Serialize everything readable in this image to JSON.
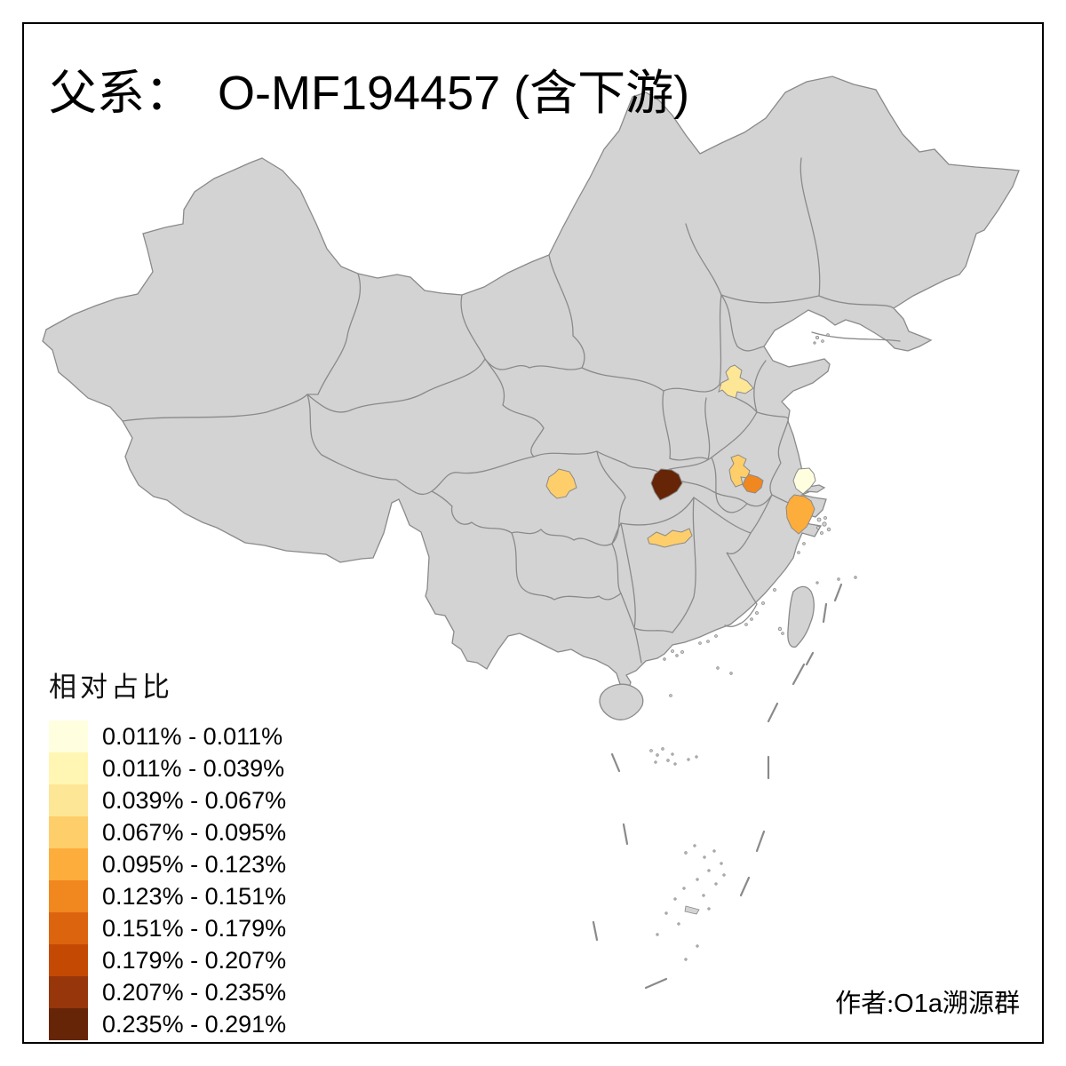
{
  "title": {
    "prefix": "父系：",
    "code": "O-MF194457 (含下游)"
  },
  "legend": {
    "title": "相对占比",
    "classes": [
      {
        "label": "0.011% - 0.011%",
        "color": "#FFFFE0"
      },
      {
        "label": "0.011% - 0.039%",
        "color": "#FFF6B3"
      },
      {
        "label": "0.039% - 0.067%",
        "color": "#FEE697"
      },
      {
        "label": "0.067% - 0.095%",
        "color": "#FDCE6A"
      },
      {
        "label": "0.095% - 0.123%",
        "color": "#FDAD3C"
      },
      {
        "label": "0.123% - 0.151%",
        "color": "#F1871F"
      },
      {
        "label": "0.151% - 0.179%",
        "color": "#DD640E"
      },
      {
        "label": "0.179% - 0.207%",
        "color": "#C44A03"
      },
      {
        "label": "0.207% - 0.235%",
        "color": "#97350B"
      },
      {
        "label": "0.235% - 0.291%",
        "color": "#652506"
      }
    ]
  },
  "credit": {
    "prefix": "作者:",
    "latin": "O1a",
    "suffix": "溯源群"
  },
  "map": {
    "background": "#FFFFFF",
    "land_color": "#D3D3D3",
    "border_color": "#8A8A8A",
    "frame_color": "#000000",
    "regions": [
      {
        "id": "west-shandong",
        "class_index": 2
      },
      {
        "id": "chengdu-area",
        "class_index": 3
      },
      {
        "id": "central-hubei",
        "class_index": 9
      },
      {
        "id": "north-anhui",
        "class_index": 3
      },
      {
        "id": "central-anhui",
        "class_index": 5
      },
      {
        "id": "nantong-area",
        "class_index": 0
      },
      {
        "id": "south-yangtze-delta",
        "class_index": 4
      },
      {
        "id": "north-hunan",
        "class_index": 3
      }
    ]
  },
  "chart_data": {
    "type": "choropleth-map",
    "title": "父系： O-MF194457 (含下游)",
    "legend_title": "相对占比",
    "bins": [
      "0.011% - 0.011%",
      "0.011% - 0.039%",
      "0.039% - 0.067%",
      "0.067% - 0.095%",
      "0.095% - 0.123%",
      "0.123% - 0.151%",
      "0.151% - 0.179%",
      "0.179% - 0.207%",
      "0.207% - 0.235%",
      "0.235% - 0.291%"
    ],
    "highlighted_regions": [
      {
        "location": "west Shandong",
        "bin": "0.039% - 0.067%"
      },
      {
        "location": "Chengdu area, Sichuan",
        "bin": "0.067% - 0.095%"
      },
      {
        "location": "central Hubei",
        "bin": "0.235% - 0.291%"
      },
      {
        "location": "north Anhui",
        "bin": "0.067% - 0.095%"
      },
      {
        "location": "central Anhui",
        "bin": "0.123% - 0.151%"
      },
      {
        "location": "Nantong area, Jiangsu",
        "bin": "0.011% - 0.011%"
      },
      {
        "location": "south Yangtze delta",
        "bin": "0.095% - 0.123%"
      },
      {
        "location": "north Hunan",
        "bin": "0.067% - 0.095%"
      }
    ]
  }
}
